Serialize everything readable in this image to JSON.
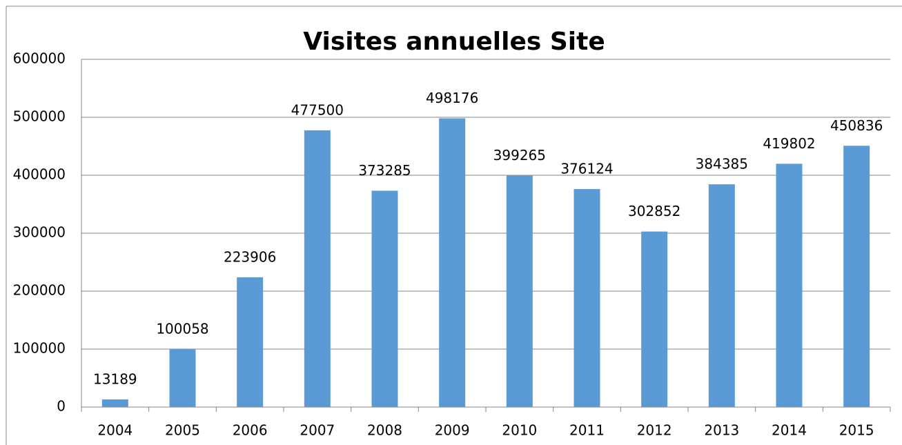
{
  "chart_data": {
    "type": "bar",
    "title": "Visites annuelles Site",
    "categories": [
      "2004",
      "2005",
      "2006",
      "2007",
      "2008",
      "2009",
      "2010",
      "2011",
      "2012",
      "2013",
      "2014",
      "2015"
    ],
    "values": [
      13189,
      100058,
      223906,
      477500,
      373285,
      498176,
      399265,
      376124,
      302852,
      384385,
      419802,
      450836
    ],
    "color": "#5b9bd5",
    "ylim": [
      0,
      600000
    ],
    "yticks": [
      0,
      100000,
      200000,
      300000,
      400000,
      500000,
      600000
    ],
    "grid": true,
    "data_labels": true
  }
}
